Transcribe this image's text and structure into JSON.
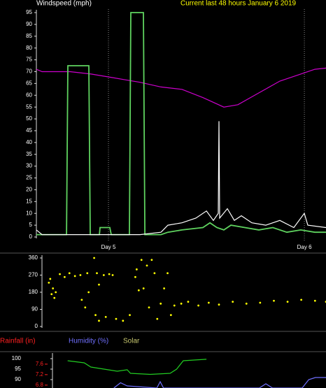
{
  "chart_data": [
    {
      "type": "line",
      "title": "Windspeed (mph)",
      "subtitle": "Current last 48 hours January 6 2019",
      "xlim": [
        -8.83,
        26.65
      ],
      "xticks": [
        {
          "value": 0,
          "label": "Day 5"
        },
        {
          "value": 24,
          "label": "Day 6"
        }
      ],
      "ylim": [
        0,
        95
      ],
      "yticks": [
        0,
        5,
        10,
        15,
        20,
        25,
        30,
        35,
        40,
        45,
        50,
        55,
        60,
        65,
        70,
        75,
        80,
        85,
        90,
        95
      ],
      "series": [
        {
          "color": "#cc00cc",
          "x": [
            -8.83,
            -8.14,
            -4.71,
            -2.14,
            0.43,
            2.14,
            3.86,
            6.43,
            9.0,
            11.57,
            14.14,
            15.85,
            18.42,
            20.99,
            23.56,
            25.28,
            26.65
          ],
          "values": [
            71,
            70,
            70,
            69,
            67.5,
            66.5,
            65.5,
            63.5,
            62.5,
            59,
            55,
            56,
            61,
            66,
            69,
            71,
            71.5
          ]
        },
        {
          "color": "#5fd35f",
          "x": [
            -8.83,
            -8.57,
            -5.14,
            -4.97,
            -2.4,
            -2.23,
            -1.11,
            -1.03,
            0.17,
            0.34,
            2.57,
            2.74,
            4.28,
            4.46,
            6.43,
            7.28,
            9.0,
            11.57,
            12.43,
            13.28,
            14.14,
            15.0,
            16.71,
            18.42,
            20.14,
            21.85,
            23.56,
            25.28,
            26.65
          ],
          "values": [
            1,
            1,
            1,
            72.5,
            72.5,
            1,
            1,
            4,
            4,
            1,
            1,
            95,
            95,
            1,
            1,
            2,
            3,
            4,
            6,
            4,
            3,
            5,
            4,
            3,
            4,
            2,
            3,
            2,
            2
          ]
        },
        {
          "color": "#ffffff",
          "x": [
            -8.83,
            -8.14,
            3.86,
            6.43,
            7.28,
            9.0,
            10.71,
            12.0,
            12.85,
            13.45,
            13.54,
            13.62,
            14.57,
            15.42,
            16.28,
            17.57,
            19.28,
            20.99,
            22.71,
            23.99,
            24.42,
            26.65
          ],
          "values": [
            3,
            1,
            1,
            2,
            5,
            6,
            8,
            11,
            7,
            10,
            49,
            8,
            12,
            7,
            9,
            6,
            5,
            7,
            4,
            10,
            5,
            4
          ]
        }
      ]
    },
    {
      "type": "scatter",
      "xlim": [
        -8.83,
        26.65
      ],
      "ylim": [
        0,
        360
      ],
      "yticks": [
        0,
        90,
        180,
        270,
        360
      ],
      "color": "#ffff00",
      "x": [
        -7.97,
        -7.8,
        -7.63,
        -7.46,
        -7.28,
        -7.11,
        -6.6,
        -6.0,
        -5.4,
        -4.71,
        -4.03,
        -3.17,
        -3.86,
        -3.43,
        -3.0,
        -2.31,
        -1.97,
        -1.71,
        -1.11,
        -0.43,
        0,
        -2.14,
        -1.71,
        -0.86,
        0.43,
        1.29,
        2.14,
        2.83,
        3.0,
        3.26,
        3.6,
        3.86,
        4.28,
        4.54,
        4.88,
        5.23,
        5.57,
        6.0,
        6.43,
        6.86,
        7.28,
        7.71,
        8.57,
        9.43,
        10.71,
        12.0,
        13.28,
        15.0,
        16.71,
        18.42,
        20.14,
        21.85,
        23.56,
        25.28,
        26.65
      ],
      "values": [
        230,
        250,
        170,
        200,
        150,
        180,
        275,
        260,
        280,
        265,
        270,
        280,
        140,
        100,
        180,
        360,
        280,
        220,
        270,
        275,
        270,
        60,
        30,
        50,
        40,
        30,
        60,
        260,
        300,
        190,
        350,
        200,
        320,
        100,
        350,
        280,
        40,
        120,
        200,
        280,
        60,
        110,
        120,
        130,
        110,
        125,
        115,
        130,
        120,
        125,
        135,
        130,
        140,
        135,
        130
      ]
    },
    {
      "type": "line",
      "xlim": [
        -8.83,
        26.65
      ],
      "legend": [
        {
          "label": "Rainfall (in)",
          "color": "#ff2020"
        },
        {
          "label": "Humidity (%)",
          "color": "#7070ff"
        },
        {
          "label": "Solar",
          "color": "#c8c870"
        }
      ],
      "ylim": [
        86,
        101
      ],
      "yticks": [
        90,
        95,
        100
      ],
      "y2lim": [
        6.69,
        7.89
      ],
      "y2ticks": [
        6.8,
        7.2,
        7.6
      ],
      "series": [
        {
          "color": "#22cc22",
          "x": [
            -6.86,
            -4.71,
            -3.86,
            -3.0,
            -0.43,
            0.86,
            1.29,
            3.86,
            6.43,
            7.28,
            8.14,
            11.14
          ],
          "values": [
            99,
            98,
            96,
            95.5,
            94,
            94.7,
            93,
            92.5,
            93,
            95,
            99,
            99.7
          ]
        },
        {
          "color": "#7070ff",
          "x": [
            -0.86,
            0,
            0.86,
            4.71,
            5.14,
            5.57,
            18.0,
            18.85,
            19.71,
            23.56,
            24.42,
            25.28,
            26.65
          ],
          "values": [
            86,
            88.5,
            87,
            86,
            89,
            86,
            86,
            88,
            86,
            86,
            90,
            91,
            91
          ]
        }
      ]
    }
  ]
}
